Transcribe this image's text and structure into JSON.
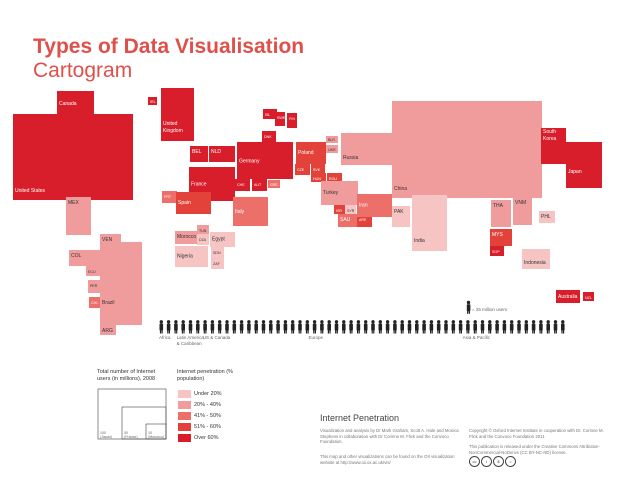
{
  "header": {
    "title": "Types of Data Visualisation",
    "subtitle": "Cartogram"
  },
  "colors": {
    "p1": "#f7c4c4",
    "p2": "#f19c9c",
    "p3": "#ec6f6a",
    "p4": "#e2423a",
    "p5": "#d81e2a"
  },
  "chart_data": {
    "type": "cartogram",
    "title": "Internet Penetration",
    "encoding": "rectangle area = total number of Internet users (in millions), 2008; colour = Internet penetration (% population)",
    "countries": [
      {
        "label": "Canada",
        "class": 5
      },
      {
        "label": "United States",
        "class": 5
      },
      {
        "label": "IRL",
        "class": 5
      },
      {
        "label": "United Kingdom",
        "class": 5
      },
      {
        "label": "ISL",
        "class": 5
      },
      {
        "label": "SWE",
        "class": 5
      },
      {
        "label": "FIN",
        "class": 5
      },
      {
        "label": "DNK",
        "class": 5
      },
      {
        "label": "BEL",
        "class": 5
      },
      {
        "label": "NLD",
        "class": 5
      },
      {
        "label": "France",
        "class": 5
      },
      {
        "label": "Germany",
        "class": 5
      },
      {
        "label": "CHE",
        "class": 5
      },
      {
        "label": "AUT",
        "class": 5
      },
      {
        "label": "Poland",
        "class": 4
      },
      {
        "label": "CZE",
        "class": 4
      },
      {
        "label": "SVK",
        "class": 4
      },
      {
        "label": "GRE",
        "class": 3
      },
      {
        "label": "HUN",
        "class": 4
      },
      {
        "label": "ROU",
        "class": 4
      },
      {
        "label": "BLR",
        "class": 2
      },
      {
        "label": "UKR",
        "class": 2
      },
      {
        "label": "Russia",
        "class": 2
      },
      {
        "label": "PRT",
        "class": 3
      },
      {
        "label": "Spain",
        "class": 4
      },
      {
        "label": "Italy",
        "class": 3
      },
      {
        "label": "Turkey",
        "class": 2
      },
      {
        "label": "ISR",
        "class": 4
      },
      {
        "label": "SYR",
        "class": 1
      },
      {
        "label": "SAU",
        "class": 3
      },
      {
        "label": "ARE",
        "class": 4
      },
      {
        "label": "Iran",
        "class": 3
      },
      {
        "label": "Morocco",
        "class": 2
      },
      {
        "label": "TUN",
        "class": 2
      },
      {
        "label": "DZA",
        "class": 1
      },
      {
        "label": "Egypt",
        "class": 1
      },
      {
        "label": "Nigeria",
        "class": 1
      },
      {
        "label": "SDN",
        "class": 1
      },
      {
        "label": "ZAF",
        "class": 1
      },
      {
        "label": "MEX",
        "class": 2
      },
      {
        "label": "VEN",
        "class": 2
      },
      {
        "label": "COL",
        "class": 2
      },
      {
        "label": "ECU",
        "class": 2
      },
      {
        "label": "PER",
        "class": 2
      },
      {
        "label": "Brazil",
        "class": 2
      },
      {
        "label": "CHL",
        "class": 3
      },
      {
        "label": "ARG",
        "class": 2
      },
      {
        "label": "China",
        "class": 2
      },
      {
        "label": "PAK",
        "class": 1
      },
      {
        "label": "India",
        "class": 1
      },
      {
        "label": "South Korea",
        "class": 5
      },
      {
        "label": "Japan",
        "class": 5
      },
      {
        "label": "THA",
        "class": 2
      },
      {
        "label": "VNM",
        "class": 2
      },
      {
        "label": "PHL",
        "class": 1
      },
      {
        "label": "MYS",
        "class": 4
      },
      {
        "label": "SGP",
        "class": 5
      },
      {
        "label": "Indonesia",
        "class": 1
      },
      {
        "label": "Australia",
        "class": 5
      },
      {
        "label": "NZL",
        "class": 5
      }
    ],
    "people_axis": {
      "unit_label": "= 25 million users",
      "regions": [
        {
          "label": "Africa",
          "people": 2
        },
        {
          "label": "Latin America & Caribbean",
          "people": 4
        },
        {
          "label": "US & Canada",
          "people": 9
        },
        {
          "label": "Europe",
          "people": 17
        },
        {
          "label": "Asia & Pacific",
          "people": 24
        }
      ]
    }
  },
  "legend": {
    "size": {
      "title": "Total number of Internet users (in millions), 2008",
      "examples": [
        {
          "value": "100",
          "label": "Japan"
        },
        {
          "value": "50",
          "label": "France"
        },
        {
          "value": "10",
          "label": "Morocco"
        }
      ]
    },
    "color": {
      "title": "Internet penetration (% population)",
      "items": [
        {
          "label": "Under 20%",
          "class": 1
        },
        {
          "label": "20% - 40%",
          "class": 2
        },
        {
          "label": "41% - 50%",
          "class": 3
        },
        {
          "label": "51% - 60%",
          "class": 4
        },
        {
          "label": "Over 60%",
          "class": 5
        }
      ]
    }
  },
  "footer": {
    "title": "Internet Penetration",
    "credit": "Visualization and analysis by Dr Mark Graham, Scott A. Hale and Monica Stephens in collaboration with Dr Corinne M. Flick and the Convoco Foundation.",
    "more": "This map and other visualizations can be found on the OII visualization website at http://www.oii.ox.ac.uk/vis/",
    "copyright": "Copyright © Oxford Internet Institute in cooperation with Dr. Corinne M. Flick and the Convoco Foundation 2011",
    "license": "This publication is released under the Creative Commons Attribution-NonCommercial-NoDerivs (CC BY-NC-ND) license.",
    "cc_icons": [
      "cc-icon",
      "by-icon",
      "nc-icon",
      "nd-icon"
    ]
  }
}
